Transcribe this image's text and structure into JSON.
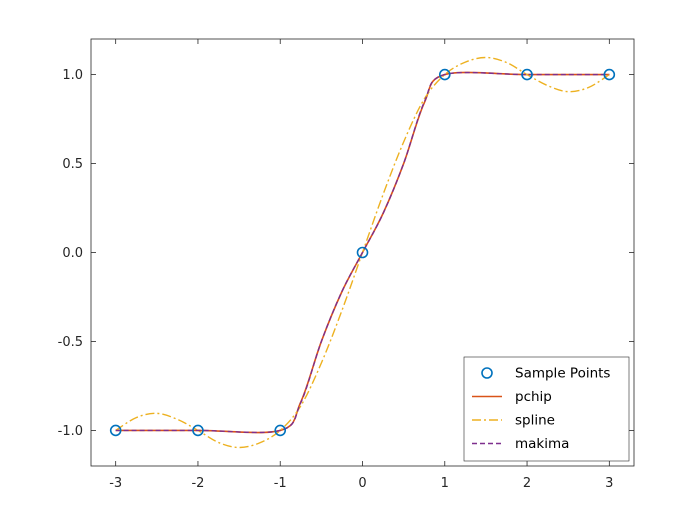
{
  "chart_data": {
    "type": "line",
    "xlim": [
      -3.3,
      3.3
    ],
    "ylim": [
      -1.2,
      1.2
    ],
    "xticks": [
      -3,
      -2,
      -1,
      0,
      1,
      2,
      3
    ],
    "xticklabels": [
      "-3",
      "-2",
      "-1",
      "0",
      "1",
      "2",
      "3"
    ],
    "yticks": [
      -1.0,
      -0.5,
      0.0,
      0.5,
      1.0
    ],
    "yticklabels": [
      "-1.0",
      "-0.5",
      "0.0",
      "0.5",
      "1.0"
    ],
    "grid": false,
    "legend_position": "bottom-right",
    "series": [
      {
        "name": "Sample Points",
        "style": "markers",
        "color": "#0072BD",
        "x": [
          -3,
          -2,
          -1,
          0,
          1,
          2,
          3
        ],
        "y": [
          -1,
          -1,
          -1,
          0,
          1,
          1,
          1
        ]
      },
      {
        "name": "pchip",
        "style": "solid",
        "color": "#D95319",
        "x": [
          -3,
          -2,
          -1,
          -0.75,
          -0.5,
          -0.25,
          0,
          0.25,
          0.5,
          0.75,
          1,
          2,
          3
        ],
        "y": [
          -1,
          -1,
          -1,
          -0.84,
          -0.5,
          -0.22,
          0,
          0.22,
          0.5,
          0.84,
          1,
          1,
          1
        ]
      },
      {
        "name": "spline",
        "style": "dashdot",
        "color": "#EDB120",
        "x": [
          -3,
          -2.75,
          -2.5,
          -2.25,
          -2,
          -1.75,
          -1.5,
          -1.25,
          -1,
          -0.75,
          -0.5,
          -0.25,
          0,
          0.25,
          0.5,
          0.75,
          1,
          1.25,
          1.5,
          1.75,
          2,
          2.25,
          2.5,
          2.75,
          3
        ],
        "y": [
          -1,
          -0.928,
          -0.904,
          -0.938,
          -1,
          -1.068,
          -1.096,
          -1.07,
          -1,
          -0.862,
          -0.621,
          -0.326,
          0,
          0.326,
          0.621,
          0.862,
          1,
          1.07,
          1.096,
          1.068,
          1,
          0.938,
          0.904,
          0.928,
          1
        ]
      },
      {
        "name": "makima",
        "style": "dashed",
        "color": "#7E2F8E",
        "x": [
          -3,
          -2,
          -1,
          -0.75,
          -0.5,
          -0.25,
          0,
          0.25,
          0.5,
          0.75,
          1,
          2,
          3
        ],
        "y": [
          -1,
          -1,
          -1,
          -0.844,
          -0.5,
          -0.219,
          0,
          0.219,
          0.5,
          0.844,
          1,
          1,
          1
        ]
      }
    ]
  }
}
